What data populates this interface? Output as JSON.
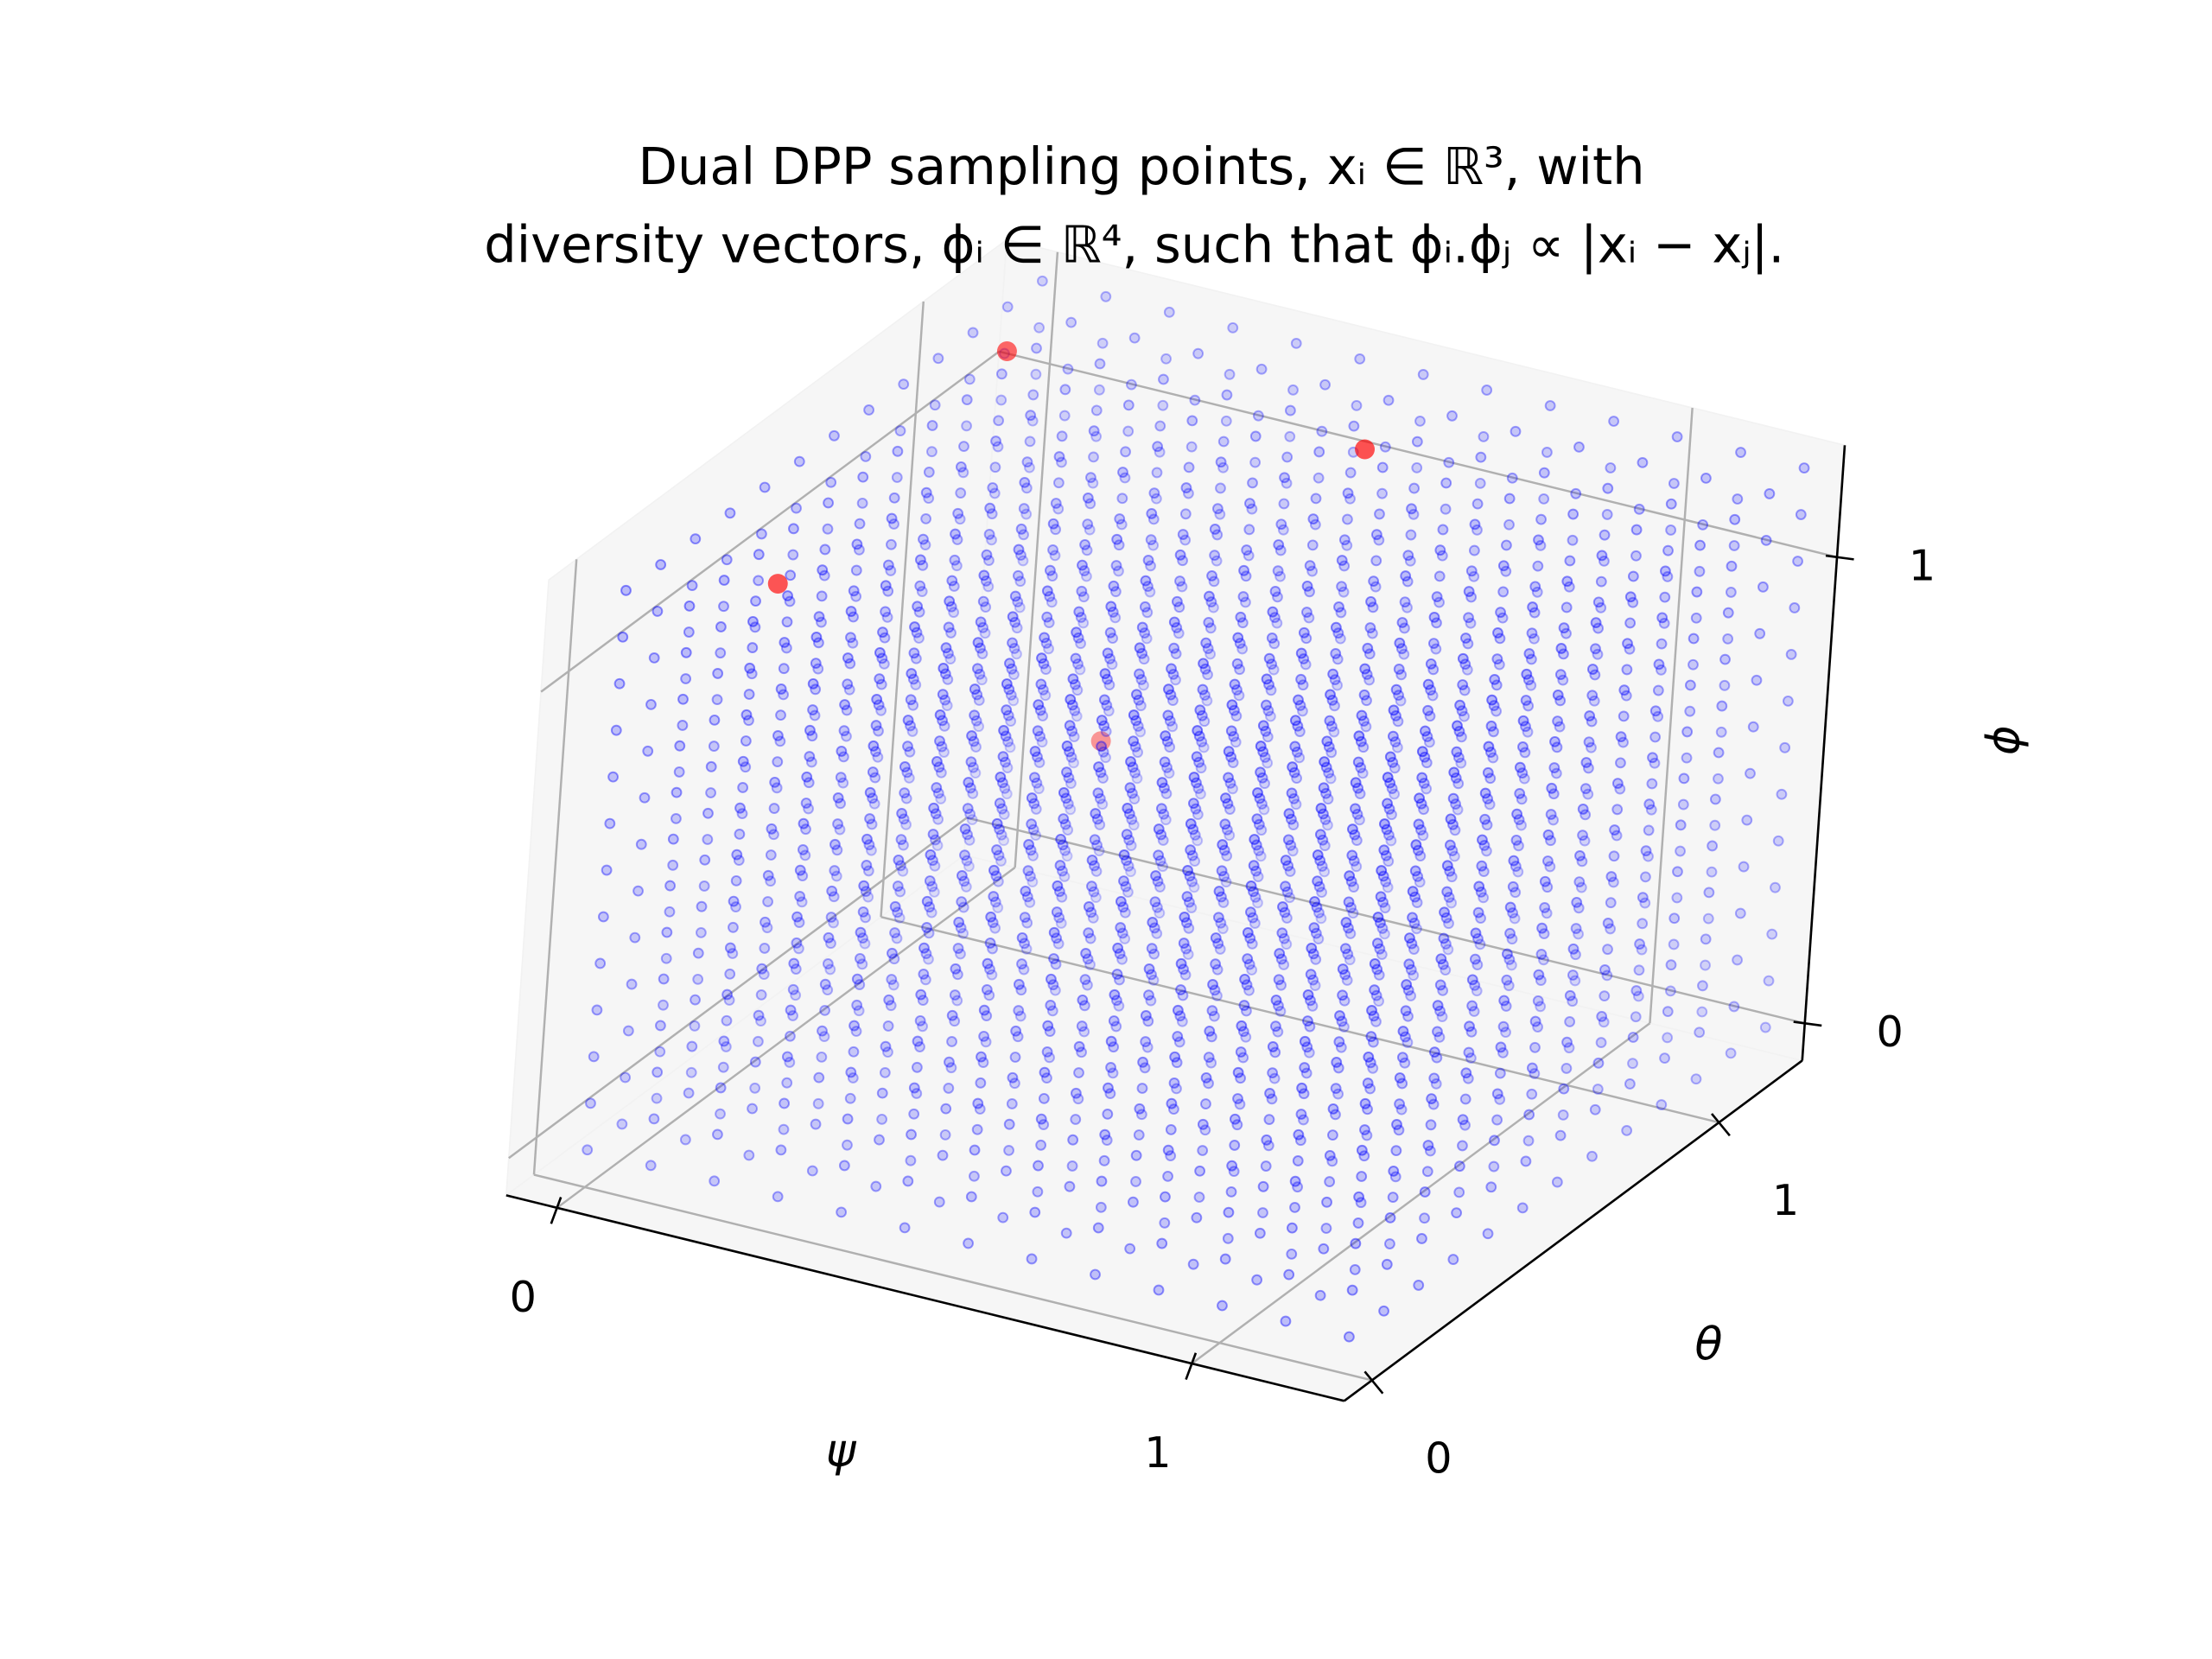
{
  "chart_data": {
    "type": "scatter3d",
    "title": [
      "Dual DPP sampling points, xᵢ ∈ ℝ³, with",
      "diversity vectors, ϕᵢ ∈ ℝ⁴, such that ϕᵢ.ϕⱼ ∝ |xᵢ − xⱼ|."
    ],
    "x_label": "ψ",
    "y_label": "θ",
    "z_label": "ϕ",
    "xlim": [
      -0.08,
      1.24
    ],
    "ylim": [
      -0.08,
      1.24
    ],
    "zlim": [
      -0.08,
      1.24
    ],
    "xticks": [
      0,
      1
    ],
    "yticks": [
      0,
      1
    ],
    "zticks": [
      0,
      1
    ],
    "grid": true,
    "depthshade": true,
    "grid_points": {
      "color": "#0000ff",
      "psi": [
        0,
        0.1,
        0.2,
        0.3,
        0.4,
        0.5,
        0.6,
        0.7,
        0.8,
        0.9,
        1.0,
        1.1,
        1.2
      ],
      "theta": [
        0,
        0.1,
        0.2,
        0.3,
        0.4,
        0.5,
        0.6,
        0.7,
        0.8,
        0.9,
        1.0,
        1.1,
        1.2
      ],
      "phi": [
        0,
        0.1,
        0.2,
        0.3,
        0.4,
        0.5,
        0.6,
        0.7,
        0.8,
        0.9,
        1.0,
        1.1,
        1.2
      ]
    },
    "highlight_points": {
      "color": "#ff0000",
      "psi": [
        0,
        0.65,
        0.07,
        0.14
      ],
      "theta": [
        0.46,
        0.94,
        0.97,
        1.2
      ],
      "phi": [
        0.96,
        1.2,
        1.2,
        0.26
      ]
    }
  }
}
